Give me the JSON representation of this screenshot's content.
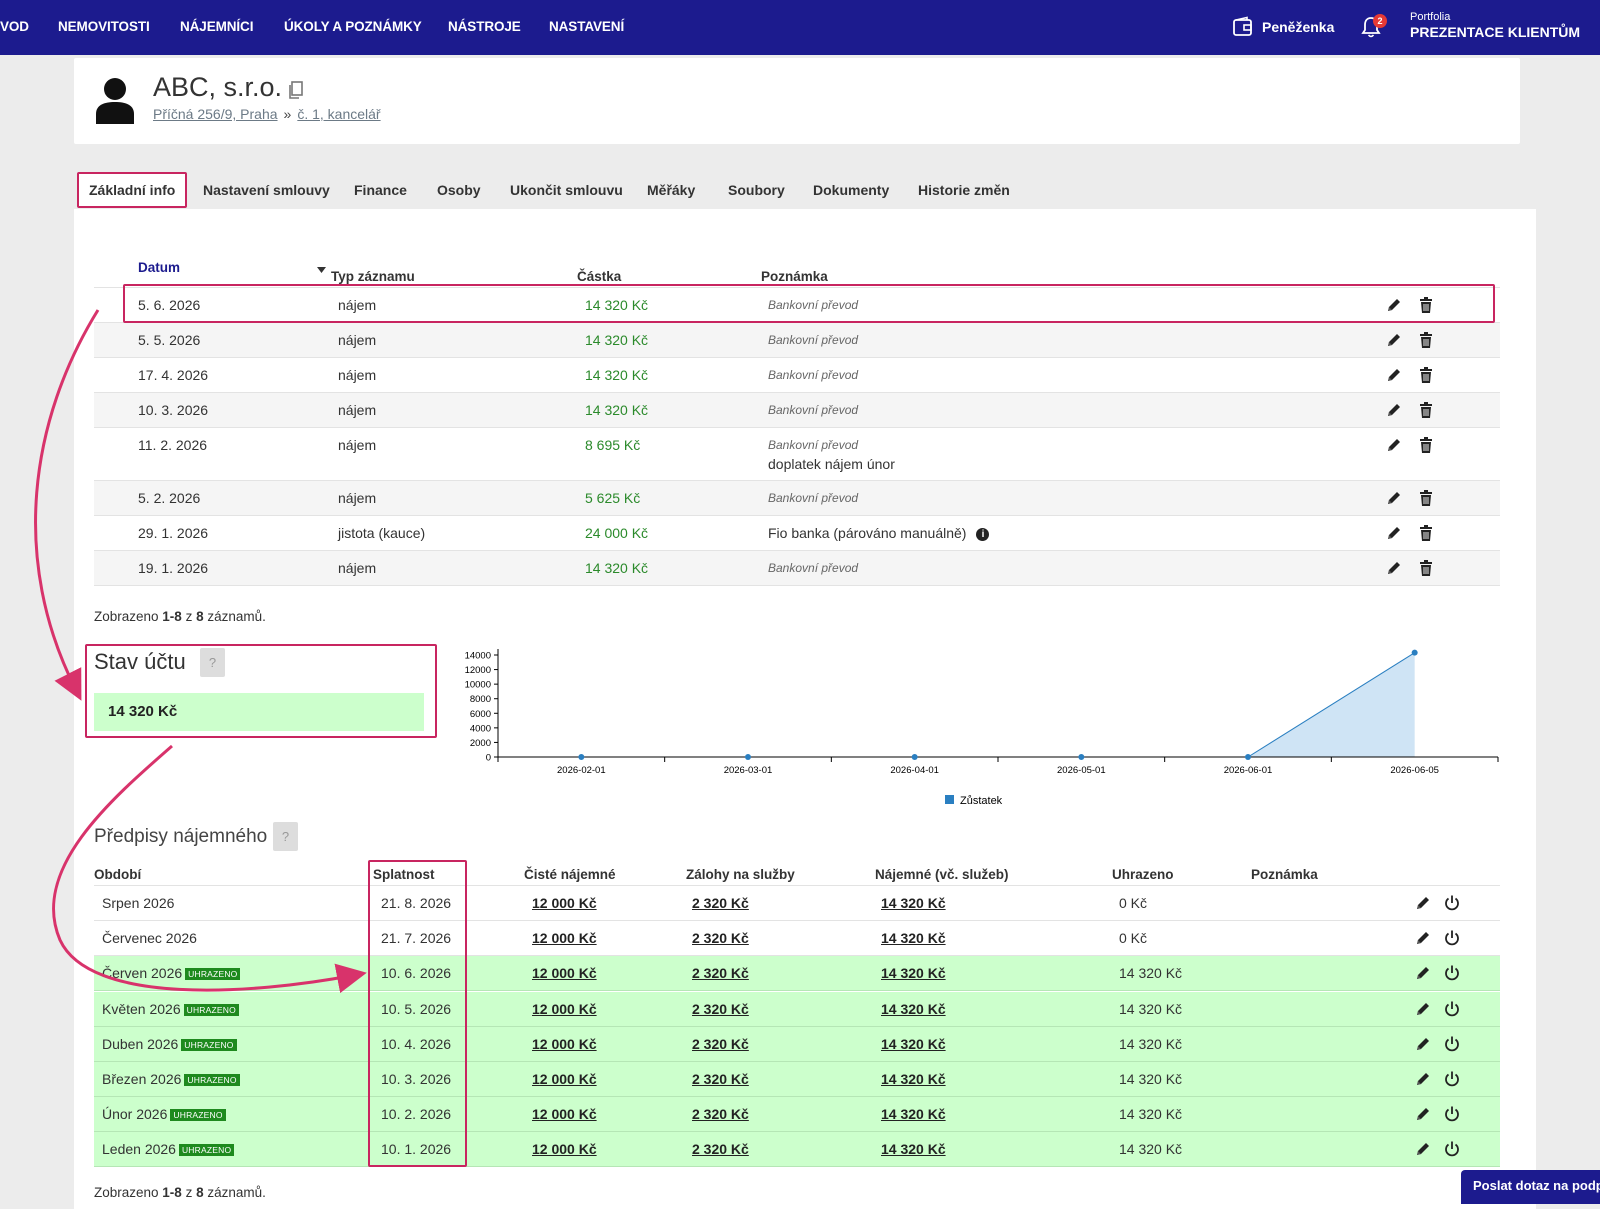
{
  "nav": {
    "items": [
      "VOD",
      "NEMOVITOSTI",
      "NÁJEMNÍCI",
      "ÚKOLY A POZNÁMKY",
      "NÁSTROJE",
      "NASTAVENÍ"
    ],
    "wallet_label": "Peněženka",
    "notifications_count": "2",
    "portfolio_small": "Portfolia",
    "portfolio_big": "PREZENTACE KLIENTŮM"
  },
  "header": {
    "title": "ABC, s.r.o.",
    "breadcrumb_address": "Příčná 256/9, Praha",
    "breadcrumb_separator": "»",
    "breadcrumb_unit": "č. 1, kancelář"
  },
  "tabs": [
    "Základní info",
    "Nastavení smlouvy",
    "Finance",
    "Osoby",
    "Ukončit smlouvu",
    "Měřáky",
    "Soubory",
    "Dokumenty",
    "Historie změn"
  ],
  "payments": {
    "columns": {
      "date": "Datum",
      "type": "Typ záznamu",
      "amount": "Částka",
      "note": "Poznámka"
    },
    "rows": [
      {
        "date": "5. 6. 2026",
        "type": "nájem",
        "amount": "14 320 Kč",
        "note": "Bankovní převod",
        "note2": ""
      },
      {
        "date": "5. 5. 2026",
        "type": "nájem",
        "amount": "14 320 Kč",
        "note": "Bankovní převod",
        "note2": ""
      },
      {
        "date": "17. 4. 2026",
        "type": "nájem",
        "amount": "14 320 Kč",
        "note": "Bankovní převod",
        "note2": ""
      },
      {
        "date": "10. 3. 2026",
        "type": "nájem",
        "amount": "14 320 Kč",
        "note": "Bankovní převod",
        "note2": ""
      },
      {
        "date": "11. 2. 2026",
        "type": "nájem",
        "amount": "8 695 Kč",
        "note": "Bankovní převod",
        "note2": "doplatek nájem únor"
      },
      {
        "date": "5. 2. 2026",
        "type": "nájem",
        "amount": "5 625 Kč",
        "note": "Bankovní převod",
        "note2": ""
      },
      {
        "date": "29. 1. 2026",
        "type": "jistota (kauce)",
        "amount": "24 000 Kč",
        "note": "",
        "note2": "Fio banka (párováno manuálně)"
      },
      {
        "date": "19. 1. 2026",
        "type": "nájem",
        "amount": "14 320 Kč",
        "note": "Bankovní převod",
        "note2": ""
      }
    ],
    "summary": {
      "prefix": "Zobrazeno ",
      "range": "1-8",
      "mid": " z ",
      "total": "8",
      "suffix": " záznamů."
    }
  },
  "account": {
    "title": "Stav účtu",
    "help": "?",
    "balance": "14 320 Kč"
  },
  "chart_data": {
    "type": "area",
    "x": [
      "2026-02-01",
      "2026-03-01",
      "2026-04-01",
      "2026-05-01",
      "2026-06-01",
      "2026-06-05"
    ],
    "series": [
      {
        "name": "Zůstatek",
        "values": [
          0,
          0,
          0,
          0,
          0,
          14320
        ]
      }
    ],
    "ylim": [
      0,
      14000
    ],
    "yticks": [
      0,
      2000,
      4000,
      6000,
      8000,
      10000,
      12000,
      14000
    ],
    "legend": "bottom",
    "color": "#2a7fc1",
    "fill": "#cfe4f5"
  },
  "prescriptions": {
    "title": "Předpisy nájemného",
    "help": "?",
    "columns": {
      "period": "Období",
      "due": "Splatnost",
      "net": "Čisté nájemné",
      "advance": "Zálohy na služby",
      "rent": "Nájemné (vč. služeb)",
      "paid": "Uhrazeno",
      "note": "Poznámka"
    },
    "paid_badge": "UHRAZENO",
    "rows": [
      {
        "period": "Srpen 2026",
        "due": "21. 8. 2026",
        "net": "12 000 Kč",
        "advance": "2 320 Kč",
        "rent": "14 320 Kč",
        "paid": "0 Kč",
        "is_paid": false
      },
      {
        "period": "Červenec 2026",
        "due": "21. 7. 2026",
        "net": "12 000 Kč",
        "advance": "2 320 Kč",
        "rent": "14 320 Kč",
        "paid": "0 Kč",
        "is_paid": false
      },
      {
        "period": "Červen 2026",
        "due": "10. 6. 2026",
        "net": "12 000 Kč",
        "advance": "2 320 Kč",
        "rent": "14 320 Kč",
        "paid": "14 320 Kč",
        "is_paid": true
      },
      {
        "period": "Květen 2026",
        "due": "10. 5. 2026",
        "net": "12 000 Kč",
        "advance": "2 320 Kč",
        "rent": "14 320 Kč",
        "paid": "14 320 Kč",
        "is_paid": true
      },
      {
        "period": "Duben 2026",
        "due": "10. 4. 2026",
        "net": "12 000 Kč",
        "advance": "2 320 Kč",
        "rent": "14 320 Kč",
        "paid": "14 320 Kč",
        "is_paid": true
      },
      {
        "period": "Březen 2026",
        "due": "10. 3. 2026",
        "net": "12 000 Kč",
        "advance": "2 320 Kč",
        "rent": "14 320 Kč",
        "paid": "14 320 Kč",
        "is_paid": true
      },
      {
        "period": "Únor 2026",
        "due": "10. 2. 2026",
        "net": "12 000 Kč",
        "advance": "2 320 Kč",
        "rent": "14 320 Kč",
        "paid": "14 320 Kč",
        "is_paid": true
      },
      {
        "period": "Leden 2026",
        "due": "10. 1. 2026",
        "net": "12 000 Kč",
        "advance": "2 320 Kč",
        "rent": "14 320 Kč",
        "paid": "14 320 Kč",
        "is_paid": true
      }
    ],
    "summary": {
      "prefix": "Zobrazeno ",
      "range": "1-8",
      "mid": " z ",
      "total": "8",
      "suffix": " záznamů."
    }
  },
  "support_button": "Poslat dotaz na podporu",
  "colors": {
    "nav": "#1c1b8e",
    "accent_highlight": "#c82560",
    "paid_row": "#ccffcc",
    "amount": "#2b8a2b"
  }
}
